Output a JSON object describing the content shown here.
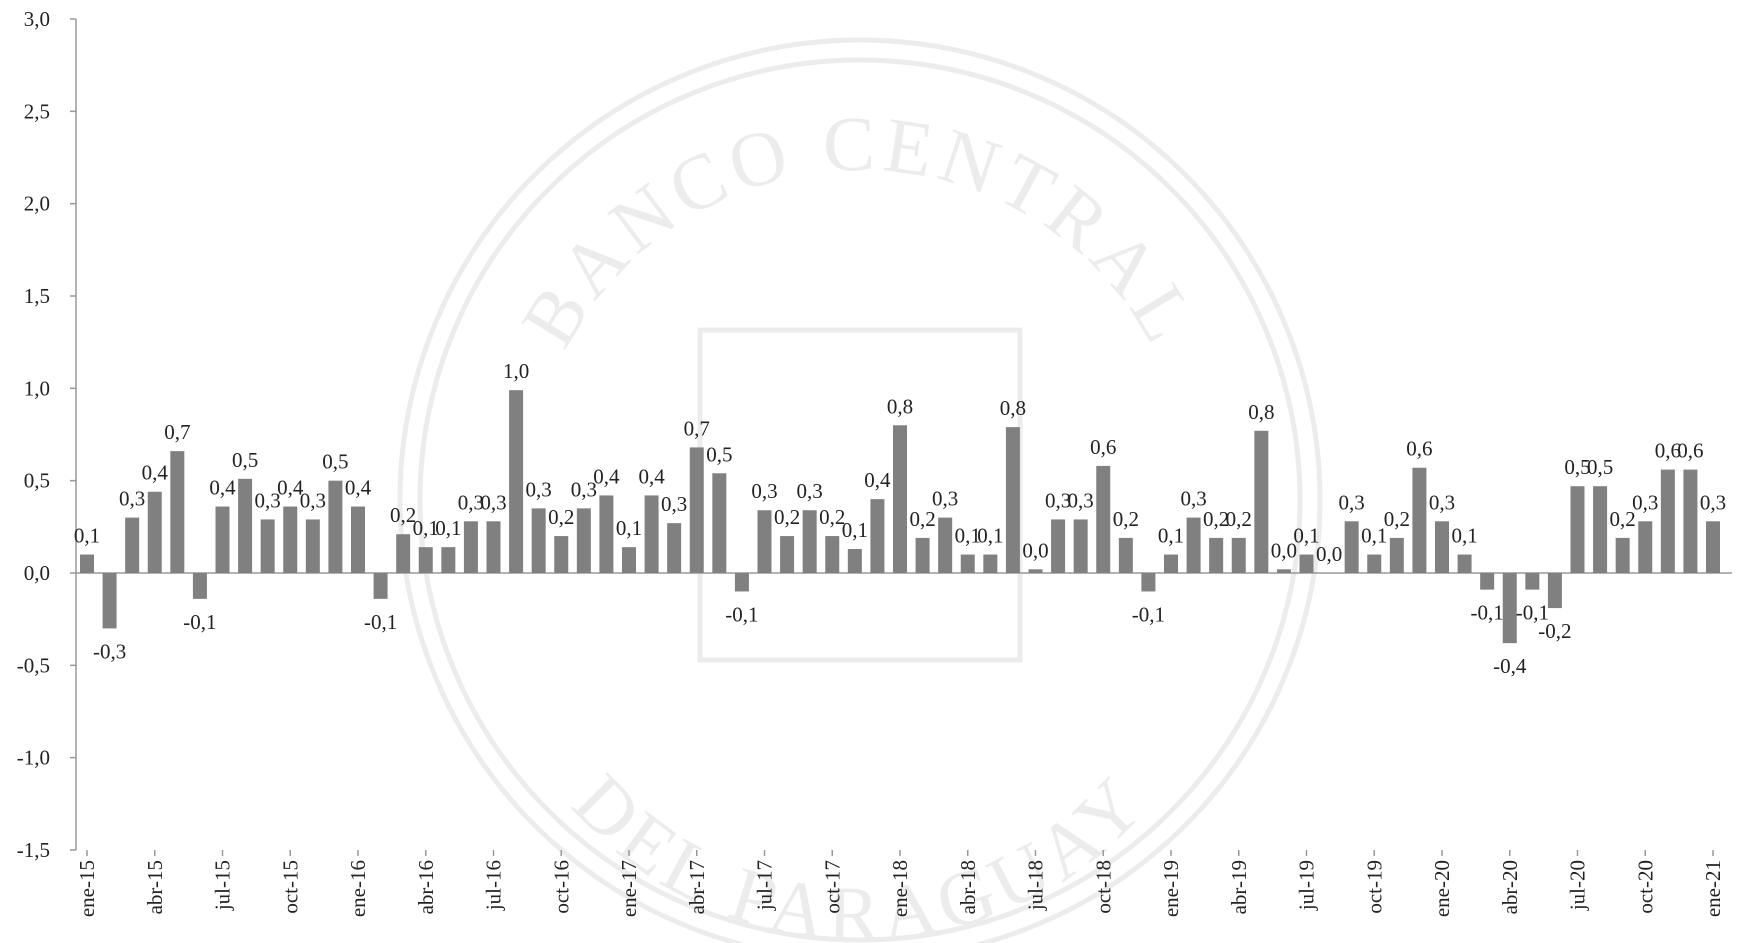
{
  "chart_data": {
    "type": "bar",
    "color": "#808080",
    "watermark_top": "BANCO CENTRAL",
    "watermark_bottom": "DEL PARAGUAY",
    "categories": [
      "ene-15",
      null,
      null,
      "abr-15",
      null,
      null,
      "jul-15",
      null,
      null,
      "oct-15",
      null,
      null,
      "ene-16",
      null,
      null,
      "abr-16",
      null,
      null,
      "jul-16",
      null,
      null,
      "oct-16",
      null,
      null,
      "ene-17",
      null,
      null,
      "abr-17",
      null,
      null,
      "jul-17",
      null,
      null,
      "oct-17",
      null,
      null,
      "ene-18",
      null,
      null,
      "abr-18",
      null,
      null,
      "jul-18",
      null,
      null,
      "oct-18",
      null,
      null,
      "ene-19",
      null,
      null,
      "abr-19",
      null,
      null,
      "jul-19",
      null,
      null,
      "oct-19",
      null,
      null,
      "ene-20",
      null,
      null,
      "abr-20",
      null,
      null,
      "jul-20",
      null,
      null,
      "oct-20",
      null,
      null,
      "ene-21"
    ],
    "values": [
      0.1,
      -0.3,
      0.3,
      0.44,
      0.66,
      -0.14,
      0.36,
      0.51,
      0.29,
      0.36,
      0.29,
      0.5,
      0.36,
      -0.14,
      0.21,
      0.14,
      0.14,
      0.28,
      0.28,
      0.99,
      0.35,
      0.2,
      0.35,
      0.42,
      0.14,
      0.42,
      0.27,
      0.68,
      0.54,
      -0.1,
      0.34,
      0.2,
      0.34,
      0.2,
      0.13,
      0.4,
      0.8,
      0.19,
      0.3,
      0.1,
      0.1,
      0.79,
      0.02,
      0.29,
      0.29,
      0.58,
      0.19,
      -0.1,
      0.1,
      0.3,
      0.19,
      0.19,
      0.77,
      0.02,
      0.1,
      0.0,
      0.28,
      0.1,
      0.19,
      0.57,
      0.28,
      0.1,
      -0.09,
      -0.38,
      -0.09,
      -0.19,
      0.47,
      0.47,
      0.19,
      0.28,
      0.56,
      0.56,
      0.28
    ],
    "value_labels": [
      "0,1",
      "-0,3",
      "0,3",
      "0,4",
      "0,7",
      "-0,1",
      "0,4",
      "0,5",
      "0,3",
      "0,4",
      "0,3",
      "0,5",
      "0,4",
      "-0,1",
      "0,2",
      "0,1",
      "0,1",
      "0,3",
      "0,3",
      "1,0",
      "0,3",
      "0,2",
      "0,3",
      "0,4",
      "0,1",
      "0,4",
      "0,3",
      "0,7",
      "0,5",
      "-0,1",
      "0,3",
      "0,2",
      "0,3",
      "0,2",
      "0,1",
      "0,4",
      "0,8",
      "0,2",
      "0,3",
      "0,1",
      "0,1",
      "0,8",
      "0,0",
      "0,3",
      "0,3",
      "0,6",
      "0,2",
      "-0,1",
      "0,1",
      "0,3",
      "0,2",
      "0,2",
      "0,8",
      "0,0",
      "0,1",
      "0,0",
      "0,3",
      "0,1",
      "0,2",
      "0,6",
      "0,3",
      "0,1",
      "-0,1",
      "-0,4",
      "-0,1",
      "-0,2",
      "0,5",
      "0,5",
      "0,2",
      "0,3",
      "0,6",
      "0,6",
      "0,3"
    ],
    "ylim": [
      -1.5,
      3.0
    ],
    "yticks": [
      {
        "value": -1.5,
        "label": "-1,5"
      },
      {
        "value": -1.0,
        "label": "-1,0"
      },
      {
        "value": -0.5,
        "label": "-0,5"
      },
      {
        "value": 0.0,
        "label": "0,0"
      },
      {
        "value": 0.5,
        "label": "0,5"
      },
      {
        "value": 1.0,
        "label": "1,0"
      },
      {
        "value": 1.5,
        "label": "1,5"
      },
      {
        "value": 2.0,
        "label": "2,0"
      },
      {
        "value": 2.5,
        "label": "2,5"
      },
      {
        "value": 3.0,
        "label": "3,0"
      }
    ]
  }
}
